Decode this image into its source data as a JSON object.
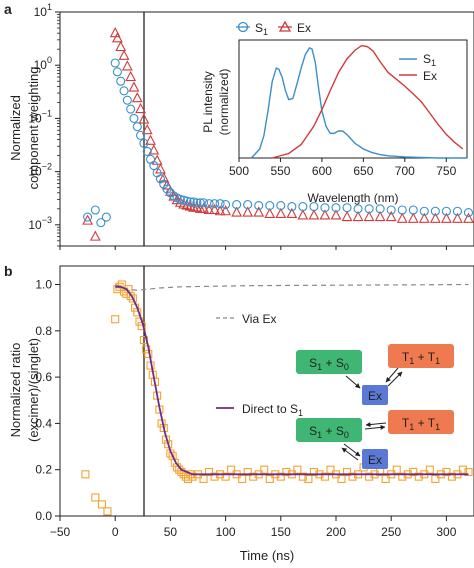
{
  "colors": {
    "s1": "#3a8fc9",
    "ex": "#d23a3a",
    "ratio_points": "#f4a32e",
    "direct_line": "#6f2a8a",
    "via_line": "#888888",
    "box_s": "#3fb673",
    "box_t": "#f07a4f",
    "box_ex": "#5a78d6"
  },
  "panel_a": {
    "letter": "a",
    "legend": [
      "S1",
      "Ex"
    ],
    "inset_legend": [
      "S1",
      "Ex"
    ]
  },
  "panel_b": {
    "letter": "b",
    "legend_via": "Via Ex",
    "legend_direct": "Direct to S1",
    "scheme_top": {
      "s": "S1 + S0",
      "t": "T1 + T1",
      "ex": "Ex"
    },
    "scheme_bottom": {
      "s": "S1 + S0",
      "t": "T1 + T1",
      "ex": "Ex"
    }
  },
  "chart_data": [
    {
      "panel": "a",
      "type": "scatter",
      "ylabel": "Normalized component weighting",
      "yscale": "log",
      "xlim": [
        -50,
        325
      ],
      "ylim": [
        0.0004,
        10
      ],
      "yticks": [
        "10^1",
        "10^0",
        "10^-1",
        "10^-2",
        "10^-3"
      ],
      "series": [
        {
          "name": "S1",
          "marker": "circle",
          "x": [
            -25,
            -18,
            -13,
            -8,
            0,
            2,
            5,
            8,
            11,
            14,
            17,
            20,
            23,
            26,
            29,
            32,
            35,
            38,
            41,
            44,
            47,
            50,
            53,
            56,
            59,
            62,
            65,
            68,
            71,
            74,
            77,
            80,
            85,
            90,
            95,
            100,
            110,
            120,
            130,
            140,
            150,
            160,
            170,
            180,
            190,
            200,
            210,
            220,
            230,
            240,
            250,
            260,
            270,
            280,
            290,
            300,
            310,
            320
          ],
          "y": [
            0.0014,
            0.0019,
            0.0011,
            0.0014,
            1.1,
            0.75,
            0.5,
            0.33,
            0.22,
            0.15,
            0.1,
            0.07,
            0.048,
            0.034,
            0.024,
            0.017,
            0.013,
            0.0095,
            0.0073,
            0.0058,
            0.0047,
            0.004,
            0.0035,
            0.0032,
            0.003,
            0.0029,
            0.0028,
            0.0027,
            0.0027,
            0.0026,
            0.0026,
            0.0026,
            0.0025,
            0.0025,
            0.0025,
            0.0024,
            0.0024,
            0.0024,
            0.0023,
            0.0023,
            0.0023,
            0.0022,
            0.0022,
            0.0022,
            0.0021,
            0.0021,
            0.0021,
            0.002,
            0.002,
            0.002,
            0.0019,
            0.0019,
            0.0019,
            0.0018,
            0.0018,
            0.0018,
            0.0018,
            0.0017
          ]
        },
        {
          "name": "Ex",
          "marker": "triangle",
          "x": [
            -25,
            -18,
            0,
            2,
            5,
            8,
            11,
            14,
            17,
            20,
            23,
            26,
            29,
            32,
            35,
            38,
            41,
            44,
            47,
            50,
            53,
            56,
            59,
            62,
            65,
            68,
            71,
            74,
            77,
            80,
            85,
            90,
            95,
            100,
            110,
            120,
            130,
            140,
            150,
            160,
            170,
            180,
            190,
            200,
            210,
            220,
            230,
            240,
            250,
            260,
            270,
            280,
            290,
            300,
            310,
            320
          ],
          "y": [
            0.0012,
            0.0006,
            4.0,
            3.2,
            2.2,
            1.5,
            0.95,
            0.6,
            0.38,
            0.24,
            0.15,
            0.095,
            0.06,
            0.038,
            0.025,
            0.016,
            0.011,
            0.0075,
            0.0055,
            0.0042,
            0.0034,
            0.0029,
            0.0026,
            0.0024,
            0.0023,
            0.0022,
            0.0021,
            0.0021,
            0.002,
            0.002,
            0.0019,
            0.0019,
            0.0018,
            0.0018,
            0.0017,
            0.0017,
            0.0017,
            0.0016,
            0.0016,
            0.0016,
            0.0015,
            0.0015,
            0.0015,
            0.0015,
            0.0014,
            0.0014,
            0.0014,
            0.0014,
            0.0014,
            0.0013,
            0.0013,
            0.0013,
            0.0013,
            0.0013,
            0.0013,
            0.0013
          ]
        }
      ]
    },
    {
      "panel": "a-inset",
      "type": "line",
      "xlabel": "Wavelength (nm)",
      "ylabel": "PL intensity (normalized)",
      "xlim": [
        500,
        775
      ],
      "ylim": [
        0,
        1.05
      ],
      "xticks": [
        500,
        550,
        600,
        650,
        700,
        750
      ],
      "series": [
        {
          "name": "S1",
          "x": [
            515,
            525,
            530,
            535,
            540,
            545,
            548,
            552,
            556,
            560,
            565,
            570,
            575,
            580,
            585,
            588,
            592,
            596,
            600,
            605,
            610,
            615,
            620,
            625,
            630,
            635,
            640,
            650,
            660,
            670,
            680,
            700,
            720,
            740,
            760,
            775
          ],
          "y": [
            0.0,
            0.08,
            0.2,
            0.42,
            0.68,
            0.8,
            0.79,
            0.72,
            0.6,
            0.52,
            0.53,
            0.66,
            0.8,
            0.92,
            0.98,
            0.97,
            0.85,
            0.62,
            0.42,
            0.28,
            0.22,
            0.22,
            0.24,
            0.24,
            0.21,
            0.17,
            0.13,
            0.08,
            0.05,
            0.03,
            0.02,
            0.01,
            0.005,
            0.0,
            0.0,
            0.0
          ]
        },
        {
          "name": "Ex",
          "x": [
            540,
            560,
            575,
            590,
            600,
            610,
            620,
            630,
            640,
            648,
            655,
            662,
            670,
            680,
            690,
            700,
            710,
            720,
            730,
            740,
            750,
            760,
            770
          ],
          "y": [
            0.0,
            0.04,
            0.12,
            0.28,
            0.43,
            0.6,
            0.76,
            0.88,
            0.96,
            1.0,
            0.99,
            0.95,
            0.86,
            0.76,
            0.7,
            0.64,
            0.57,
            0.5,
            0.4,
            0.3,
            0.21,
            0.14,
            0.08
          ]
        }
      ]
    },
    {
      "panel": "b",
      "type": "scatter",
      "xlabel": "Time (ns)",
      "ylabel": "Normalized ratio (excimer)/(singlet)",
      "xlim": [
        -50,
        325
      ],
      "ylim": [
        0,
        1.08
      ],
      "xticks": [
        -50,
        0,
        50,
        100,
        150,
        200,
        250,
        300
      ],
      "yticks": [
        0.0,
        0.2,
        0.4,
        0.6,
        0.8,
        1.0
      ],
      "series": [
        {
          "name": "data",
          "marker": "square",
          "x": [
            -27,
            -18,
            -12,
            -7,
            0,
            2,
            4,
            6,
            8,
            10,
            12,
            14,
            16,
            18,
            20,
            22,
            24,
            26,
            28,
            30,
            32,
            34,
            36,
            38,
            40,
            42,
            44,
            46,
            48,
            50,
            52,
            54,
            56,
            58,
            60,
            62,
            64,
            66,
            68,
            70,
            75,
            80,
            85,
            90,
            95,
            100,
            105,
            110,
            115,
            120,
            125,
            130,
            135,
            140,
            145,
            150,
            155,
            160,
            165,
            170,
            175,
            180,
            185,
            190,
            195,
            200,
            205,
            210,
            215,
            220,
            225,
            230,
            235,
            240,
            245,
            250,
            255,
            260,
            265,
            270,
            275,
            280,
            285,
            290,
            295,
            300,
            305,
            310,
            315,
            320
          ],
          "y": [
            0.18,
            0.08,
            0.05,
            0.02,
            0.85,
            0.98,
            0.99,
            1.0,
            0.97,
            0.96,
            0.98,
            0.95,
            0.94,
            0.9,
            0.88,
            0.84,
            0.82,
            0.76,
            0.72,
            0.7,
            0.65,
            0.61,
            0.58,
            0.52,
            0.46,
            0.4,
            0.38,
            0.33,
            0.31,
            0.27,
            0.26,
            0.23,
            0.21,
            0.2,
            0.19,
            0.18,
            0.17,
            0.16,
            0.18,
            0.17,
            0.18,
            0.16,
            0.19,
            0.17,
            0.18,
            0.17,
            0.2,
            0.18,
            0.16,
            0.19,
            0.17,
            0.18,
            0.2,
            0.16,
            0.18,
            0.17,
            0.19,
            0.18,
            0.2,
            0.17,
            0.16,
            0.19,
            0.18,
            0.17,
            0.2,
            0.18,
            0.16,
            0.19,
            0.17,
            0.18,
            0.21,
            0.17,
            0.18,
            0.19,
            0.16,
            0.18,
            0.2,
            0.17,
            0.18,
            0.19,
            0.17,
            0.18,
            0.2,
            0.16,
            0.18,
            0.19,
            0.17,
            0.18,
            0.2,
            0.19
          ]
        },
        {
          "name": "Via Ex",
          "style": "dashed",
          "x": [
            0,
            10,
            20,
            30,
            40,
            60,
            80,
            120,
            160,
            200,
            240,
            280,
            320
          ],
          "y": [
            1.0,
            0.98,
            0.975,
            0.98,
            0.985,
            0.99,
            0.992,
            0.995,
            0.996,
            0.997,
            0.998,
            0.999,
            1.0
          ]
        },
        {
          "name": "Direct to S1",
          "style": "solid",
          "x": [
            0,
            5,
            10,
            15,
            20,
            25,
            30,
            35,
            40,
            45,
            50,
            55,
            60,
            65,
            70,
            80,
            90,
            100,
            150,
            200,
            250,
            300,
            320
          ],
          "y": [
            0.99,
            0.99,
            0.98,
            0.95,
            0.9,
            0.83,
            0.73,
            0.6,
            0.47,
            0.36,
            0.28,
            0.23,
            0.2,
            0.19,
            0.18,
            0.18,
            0.18,
            0.18,
            0.18,
            0.18,
            0.18,
            0.18,
            0.18
          ]
        }
      ]
    }
  ]
}
